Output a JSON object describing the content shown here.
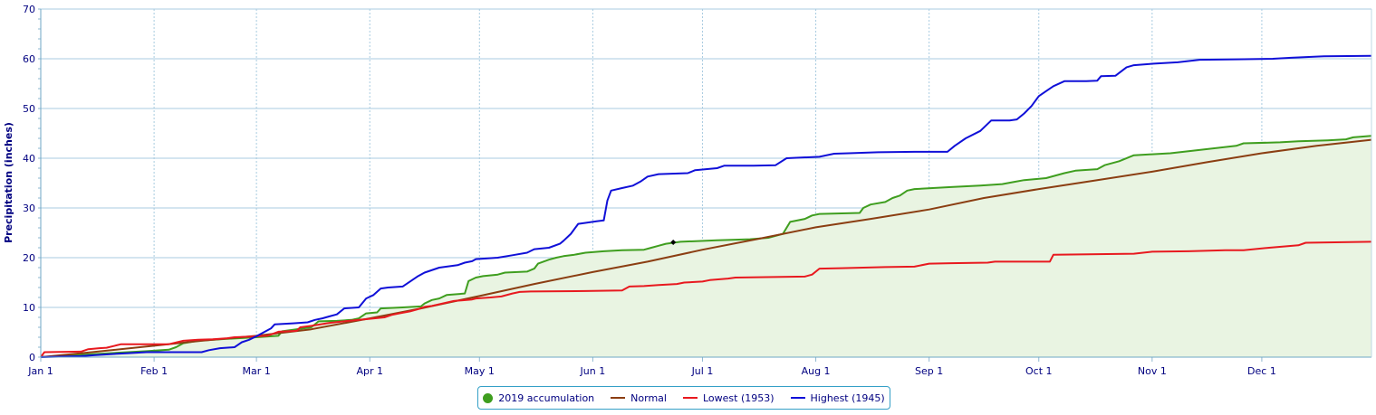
{
  "chart_data": {
    "type": "line",
    "ylabel": "Precipitation (inches)",
    "ylim": [
      0,
      70
    ],
    "yticks": [
      "0",
      "10",
      "20",
      "30",
      "40",
      "50",
      "60",
      "70"
    ],
    "xlim_day": [
      1,
      365
    ],
    "x_unit": "day of year",
    "xticks": [
      {
        "label": "Jan 1",
        "day": 1
      },
      {
        "label": "Feb 1",
        "day": 32
      },
      {
        "label": "Mar 1",
        "day": 60
      },
      {
        "label": "Apr 1",
        "day": 91
      },
      {
        "label": "May 1",
        "day": 121
      },
      {
        "label": "Jun 1",
        "day": 152
      },
      {
        "label": "Jul 1",
        "day": 182
      },
      {
        "label": "Aug 1",
        "day": 213
      },
      {
        "label": "Sep 1",
        "day": 244
      },
      {
        "label": "Oct 1",
        "day": 274
      },
      {
        "label": "Nov 1",
        "day": 305
      },
      {
        "label": "Dec 1",
        "day": 335
      }
    ],
    "grid": true,
    "legend_position": "bottom-center",
    "series": [
      {
        "name": "2019 accumulation",
        "color": "#3f9e1f",
        "fill": "#e9f4e2",
        "points": [
          [
            1,
            0
          ],
          [
            20,
            0.8
          ],
          [
            30,
            1.2
          ],
          [
            36,
            1.5
          ],
          [
            38,
            2.0
          ],
          [
            40,
            2.8
          ],
          [
            44,
            3.3
          ],
          [
            50,
            3.6
          ],
          [
            55,
            3.8
          ],
          [
            60,
            4.0
          ],
          [
            66,
            4.3
          ],
          [
            67,
            5.2
          ],
          [
            70,
            5.5
          ],
          [
            75,
            6.0
          ],
          [
            77,
            7.2
          ],
          [
            82,
            7.3
          ],
          [
            86,
            7.5
          ],
          [
            88,
            7.8
          ],
          [
            90,
            8.8
          ],
          [
            93,
            9.0
          ],
          [
            94,
            9.8
          ],
          [
            100,
            10.0
          ],
          [
            105,
            10.2
          ],
          [
            106,
            10.8
          ],
          [
            108,
            11.5
          ],
          [
            110,
            11.8
          ],
          [
            112,
            12.5
          ],
          [
            117,
            12.8
          ],
          [
            118,
            15.3
          ],
          [
            120,
            16.0
          ],
          [
            122,
            16.3
          ],
          [
            126,
            16.6
          ],
          [
            128,
            17.0
          ],
          [
            134,
            17.2
          ],
          [
            136,
            17.8
          ],
          [
            137,
            18.8
          ],
          [
            140,
            19.6
          ],
          [
            142,
            20.0
          ],
          [
            144,
            20.3
          ],
          [
            147,
            20.6
          ],
          [
            150,
            21.0
          ],
          [
            155,
            21.3
          ],
          [
            160,
            21.5
          ],
          [
            166,
            21.6
          ],
          [
            168,
            22.0
          ],
          [
            170,
            22.4
          ],
          [
            172,
            22.8
          ],
          [
            174,
            23.0
          ],
          [
            176,
            23.2
          ],
          [
            186,
            23.5
          ],
          [
            195,
            23.7
          ],
          [
            200,
            24.0
          ],
          [
            204,
            24.8
          ],
          [
            206,
            27.2
          ],
          [
            210,
            27.8
          ],
          [
            212,
            28.5
          ],
          [
            214,
            28.8
          ],
          [
            225,
            29.0
          ],
          [
            226,
            30.0
          ],
          [
            228,
            30.7
          ],
          [
            232,
            31.2
          ],
          [
            234,
            32.0
          ],
          [
            236,
            32.5
          ],
          [
            238,
            33.5
          ],
          [
            240,
            33.8
          ],
          [
            250,
            34.2
          ],
          [
            258,
            34.5
          ],
          [
            264,
            34.8
          ],
          [
            267,
            35.2
          ],
          [
            270,
            35.6
          ],
          [
            276,
            36.0
          ],
          [
            281,
            37.0
          ],
          [
            284,
            37.5
          ],
          [
            290,
            37.8
          ],
          [
            292,
            38.6
          ],
          [
            296,
            39.4
          ],
          [
            300,
            40.6
          ],
          [
            305,
            40.8
          ],
          [
            310,
            41.0
          ],
          [
            316,
            41.5
          ],
          [
            322,
            42.0
          ],
          [
            328,
            42.5
          ],
          [
            330,
            43.0
          ],
          [
            340,
            43.2
          ],
          [
            345,
            43.4
          ],
          [
            353,
            43.6
          ],
          [
            358,
            43.8
          ],
          [
            360,
            44.2
          ],
          [
            365,
            44.5
          ]
        ],
        "marker": {
          "day": 174,
          "value": 23.1
        }
      },
      {
        "name": "Normal",
        "color": "#8b3e12",
        "points": [
          [
            1,
            0
          ],
          [
            15,
            1.0
          ],
          [
            32,
            2.3
          ],
          [
            45,
            3.3
          ],
          [
            60,
            4.3
          ],
          [
            75,
            5.6
          ],
          [
            91,
            7.8
          ],
          [
            105,
            9.8
          ],
          [
            121,
            12.3
          ],
          [
            136,
            14.7
          ],
          [
            152,
            17.1
          ],
          [
            167,
            19.2
          ],
          [
            182,
            21.6
          ],
          [
            198,
            23.9
          ],
          [
            213,
            26.1
          ],
          [
            228,
            27.8
          ],
          [
            244,
            29.7
          ],
          [
            259,
            32.0
          ],
          [
            274,
            33.8
          ],
          [
            290,
            35.6
          ],
          [
            305,
            37.3
          ],
          [
            320,
            39.2
          ],
          [
            335,
            41.0
          ],
          [
            350,
            42.5
          ],
          [
            365,
            43.7
          ]
        ]
      },
      {
        "name": "Lowest (1953)",
        "color": "#e8191f",
        "points": [
          [
            1,
            0
          ],
          [
            2,
            1.0
          ],
          [
            12,
            1.1
          ],
          [
            14,
            1.6
          ],
          [
            17,
            1.8
          ],
          [
            19,
            1.9
          ],
          [
            23,
            2.6
          ],
          [
            36,
            2.6
          ],
          [
            40,
            3.3
          ],
          [
            44,
            3.5
          ],
          [
            48,
            3.6
          ],
          [
            52,
            3.8
          ],
          [
            54,
            4.0
          ],
          [
            58,
            4.1
          ],
          [
            63,
            4.3
          ],
          [
            66,
            5.1
          ],
          [
            71,
            5.3
          ],
          [
            72,
            6.0
          ],
          [
            75,
            6.3
          ],
          [
            80,
            6.9
          ],
          [
            84,
            7.2
          ],
          [
            88,
            7.5
          ],
          [
            91,
            7.7
          ],
          [
            95,
            8.0
          ],
          [
            97,
            8.5
          ],
          [
            99,
            8.8
          ],
          [
            102,
            9.2
          ],
          [
            104,
            9.6
          ],
          [
            106,
            10.1
          ],
          [
            108,
            10.3
          ],
          [
            111,
            10.8
          ],
          [
            114,
            11.3
          ],
          [
            119,
            11.6
          ],
          [
            120,
            11.8
          ],
          [
            124,
            12.0
          ],
          [
            127,
            12.2
          ],
          [
            130,
            12.8
          ],
          [
            132,
            13.1
          ],
          [
            135,
            13.2
          ],
          [
            150,
            13.3
          ],
          [
            160,
            13.4
          ],
          [
            162,
            14.2
          ],
          [
            166,
            14.3
          ],
          [
            170,
            14.5
          ],
          [
            175,
            14.7
          ],
          [
            177,
            15.0
          ],
          [
            182,
            15.2
          ],
          [
            184,
            15.5
          ],
          [
            189,
            15.8
          ],
          [
            191,
            16.0
          ],
          [
            210,
            16.2
          ],
          [
            212,
            16.6
          ],
          [
            214,
            17.8
          ],
          [
            220,
            17.9
          ],
          [
            232,
            18.1
          ],
          [
            240,
            18.2
          ],
          [
            244,
            18.8
          ],
          [
            250,
            18.9
          ],
          [
            260,
            19.0
          ],
          [
            262,
            19.2
          ],
          [
            277,
            19.2
          ],
          [
            278,
            20.6
          ],
          [
            300,
            20.8
          ],
          [
            305,
            21.2
          ],
          [
            315,
            21.3
          ],
          [
            325,
            21.5
          ],
          [
            330,
            21.5
          ],
          [
            337,
            22.0
          ],
          [
            345,
            22.5
          ],
          [
            347,
            23.0
          ],
          [
            365,
            23.2
          ]
        ]
      },
      {
        "name": "Highest (1945)",
        "color": "#1010d8",
        "points": [
          [
            1,
            0
          ],
          [
            12,
            0.2
          ],
          [
            16,
            0.4
          ],
          [
            20,
            0.6
          ],
          [
            25,
            0.8
          ],
          [
            30,
            1.0
          ],
          [
            45,
            1.0
          ],
          [
            47,
            1.4
          ],
          [
            50,
            1.8
          ],
          [
            54,
            2.0
          ],
          [
            56,
            3.0
          ],
          [
            58,
            3.5
          ],
          [
            60,
            4.2
          ],
          [
            62,
            5.0
          ],
          [
            64,
            5.8
          ],
          [
            65,
            6.6
          ],
          [
            70,
            6.8
          ],
          [
            74,
            7.0
          ],
          [
            76,
            7.5
          ],
          [
            78,
            7.8
          ],
          [
            80,
            8.2
          ],
          [
            82,
            8.6
          ],
          [
            84,
            9.8
          ],
          [
            88,
            10.0
          ],
          [
            90,
            11.8
          ],
          [
            92,
            12.5
          ],
          [
            94,
            13.8
          ],
          [
            96,
            14.0
          ],
          [
            100,
            14.2
          ],
          [
            102,
            15.2
          ],
          [
            104,
            16.2
          ],
          [
            106,
            17.0
          ],
          [
            110,
            18.0
          ],
          [
            115,
            18.5
          ],
          [
            117,
            19.0
          ],
          [
            119,
            19.3
          ],
          [
            120,
            19.7
          ],
          [
            126,
            20.0
          ],
          [
            130,
            20.5
          ],
          [
            134,
            21.0
          ],
          [
            136,
            21.7
          ],
          [
            140,
            22.0
          ],
          [
            143,
            22.8
          ],
          [
            144,
            23.4
          ],
          [
            146,
            24.8
          ],
          [
            148,
            26.8
          ],
          [
            150,
            27.0
          ],
          [
            153,
            27.3
          ],
          [
            155,
            27.5
          ],
          [
            156,
            31.5
          ],
          [
            157,
            33.5
          ],
          [
            160,
            34.0
          ],
          [
            163,
            34.5
          ],
          [
            165,
            35.3
          ],
          [
            167,
            36.3
          ],
          [
            170,
            36.8
          ],
          [
            178,
            37.0
          ],
          [
            180,
            37.6
          ],
          [
            186,
            38.0
          ],
          [
            188,
            38.5
          ],
          [
            196,
            38.5
          ],
          [
            202,
            38.6
          ],
          [
            205,
            40.0
          ],
          [
            214,
            40.3
          ],
          [
            218,
            40.9
          ],
          [
            222,
            41.0
          ],
          [
            230,
            41.2
          ],
          [
            240,
            41.3
          ],
          [
            249,
            41.3
          ],
          [
            251,
            42.5
          ],
          [
            254,
            44.0
          ],
          [
            258,
            45.5
          ],
          [
            261,
            47.6
          ],
          [
            266,
            47.6
          ],
          [
            268,
            47.8
          ],
          [
            270,
            49.0
          ],
          [
            272,
            50.5
          ],
          [
            274,
            52.5
          ],
          [
            276,
            53.5
          ],
          [
            278,
            54.5
          ],
          [
            281,
            55.5
          ],
          [
            287,
            55.5
          ],
          [
            290,
            55.6
          ],
          [
            291,
            56.5
          ],
          [
            295,
            56.6
          ],
          [
            298,
            58.3
          ],
          [
            300,
            58.7
          ],
          [
            305,
            59.0
          ],
          [
            312,
            59.3
          ],
          [
            318,
            59.8
          ],
          [
            328,
            59.9
          ],
          [
            338,
            60.0
          ],
          [
            343,
            60.2
          ],
          [
            352,
            60.5
          ],
          [
            365,
            60.6
          ]
        ]
      }
    ]
  },
  "legend": {
    "items": [
      {
        "label": "2019 accumulation",
        "color": "#3f9e1f",
        "swatch": "dot"
      },
      {
        "label": "Normal",
        "color": "#8b3e12",
        "swatch": "line"
      },
      {
        "label": "Lowest (1953)",
        "color": "#e8191f",
        "swatch": "line"
      },
      {
        "label": "Highest (1945)",
        "color": "#1010d8",
        "swatch": "line"
      }
    ]
  }
}
